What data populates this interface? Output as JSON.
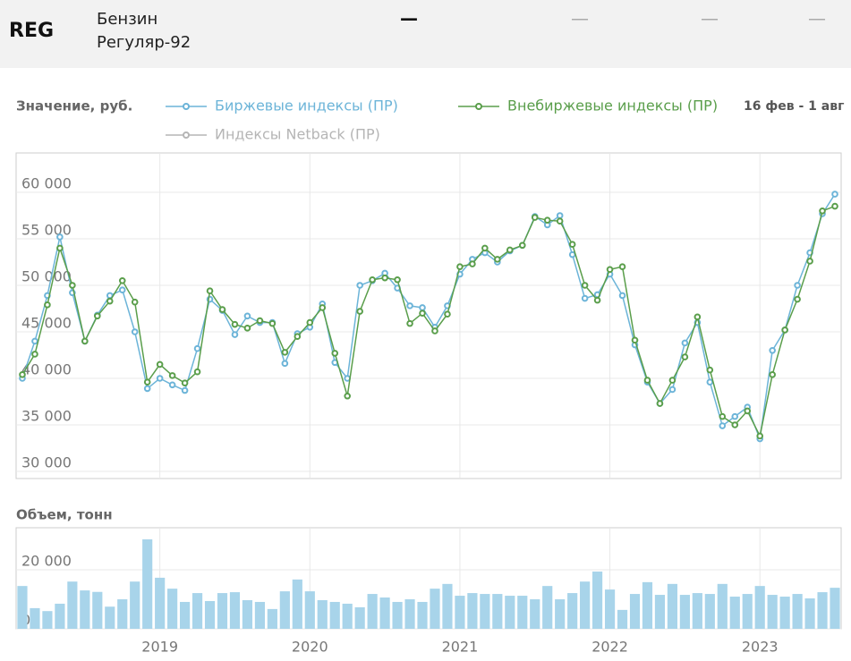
{
  "header": {
    "code": "REG",
    "product": "Бензин",
    "grade": "Регуляр-92",
    "dashes": [
      "—",
      "—",
      "—",
      "—"
    ]
  },
  "chart_data": [
    {
      "type": "line",
      "ylabel": "Значение, руб.",
      "annotation": "16 фев - 1 авг",
      "ylim": [
        29230,
        64230
      ],
      "yticks": [
        {
          "value": 30000,
          "label": "30 000"
        },
        {
          "value": 35000,
          "label": "35 000"
        },
        {
          "value": 40000,
          "label": "40 000"
        },
        {
          "value": 45000,
          "label": "45 000"
        },
        {
          "value": 50000,
          "label": "50 000"
        },
        {
          "value": 55000,
          "label": "55 000"
        },
        {
          "value": 60000,
          "label": "60 000"
        }
      ],
      "grid": true,
      "series": [
        {
          "name": "Биржевые индексы (ПР)",
          "color": "#6cb4d8",
          "values": [
            40000,
            44000,
            48900,
            55200,
            49200,
            44000,
            46800,
            48900,
            49500,
            45000,
            38900,
            40000,
            39300,
            38700,
            43200,
            48500,
            47300,
            44700,
            46700,
            46000,
            46000,
            41600,
            44800,
            45500,
            48000,
            41700,
            40000,
            50000,
            50500,
            51300,
            49700,
            47800,
            47600,
            45500,
            47800,
            51200,
            52800,
            53500,
            52500,
            53700,
            54300,
            57400,
            56500,
            57500,
            53300,
            48600,
            49000,
            51200,
            48900,
            43600,
            39600,
            37300,
            38800,
            43800,
            46000,
            39600,
            34900,
            35900,
            36900,
            33500,
            43000,
            45200,
            50000,
            53500,
            57700,
            59800
          ]
        },
        {
          "name": "Внебиржевые индексы (ПР)",
          "color": "#5a9e4b",
          "values": [
            40400,
            42600,
            47900,
            54000,
            50000,
            44000,
            46700,
            48300,
            50500,
            48200,
            39600,
            41500,
            40300,
            39500,
            40700,
            49400,
            47400,
            45800,
            45400,
            46200,
            45900,
            42800,
            44500,
            46000,
            47600,
            42700,
            38100,
            47200,
            50600,
            50800,
            50600,
            45900,
            47000,
            45100,
            46900,
            52000,
            52300,
            54000,
            52800,
            53800,
            54300,
            57300,
            57000,
            56900,
            54400,
            50000,
            48400,
            51700,
            52000,
            44100,
            39800,
            37300,
            39800,
            42300,
            46600,
            40900,
            35900,
            35000,
            36500,
            33800,
            40400,
            45200,
            48500,
            52600,
            58000,
            58500
          ]
        },
        {
          "name": "Индексы Netback (ПР)",
          "color": "#b5b5b5",
          "values": [
            null,
            null,
            null,
            null,
            null,
            null,
            null,
            null,
            null,
            null,
            null,
            null,
            null,
            null,
            null,
            null,
            null,
            null,
            null,
            null,
            null,
            null,
            null,
            null,
            null,
            null,
            null,
            null,
            null,
            null,
            null,
            null,
            null,
            null,
            null,
            null,
            null,
            null,
            null,
            null,
            null,
            null,
            null,
            null,
            null,
            null,
            null,
            null,
            null,
            null,
            null,
            null,
            null,
            null,
            null,
            null,
            null,
            null,
            null,
            null,
            null,
            null,
            null,
            null,
            null,
            null
          ]
        }
      ]
    },
    {
      "type": "bar",
      "ylabel": "Объем, тонн",
      "color": "#a8d4ea",
      "categories": [
        null,
        null,
        null,
        null,
        null,
        null,
        null,
        null,
        null,
        null,
        null,
        "2019",
        null,
        null,
        null,
        null,
        null,
        null,
        null,
        null,
        null,
        null,
        null,
        "2020",
        null,
        null,
        null,
        null,
        null,
        null,
        null,
        null,
        null,
        null,
        null,
        "2021",
        null,
        null,
        null,
        null,
        null,
        null,
        null,
        null,
        null,
        null,
        null,
        "2022",
        null,
        null,
        null,
        null,
        null,
        null,
        null,
        null,
        null,
        null,
        null,
        "2023",
        null,
        null,
        null,
        null,
        null,
        null
      ],
      "values": [
        14500,
        7000,
        6000,
        8500,
        16000,
        13000,
        12500,
        7500,
        10000,
        16000,
        30300,
        17300,
        13600,
        9100,
        12100,
        9400,
        12100,
        12400,
        9700,
        9100,
        6700,
        12700,
        16700,
        12700,
        9700,
        9100,
        8500,
        7300,
        11800,
        10600,
        9100,
        10000,
        9100,
        13600,
        15200,
        11200,
        12100,
        11800,
        11800,
        11200,
        11200,
        10000,
        14500,
        10000,
        12100,
        16000,
        19400,
        13300,
        6400,
        11800,
        15800,
        11500,
        15200,
        11500,
        12100,
        11800,
        15200,
        10900,
        11800,
        14500,
        11500,
        10900,
        11800,
        10300,
        12400,
        13900
      ],
      "ylim": [
        0,
        34240
      ],
      "yticks": [
        0,
        {
          "value": 20000,
          "label": "20 000"
        }
      ],
      "grid": true
    }
  ]
}
